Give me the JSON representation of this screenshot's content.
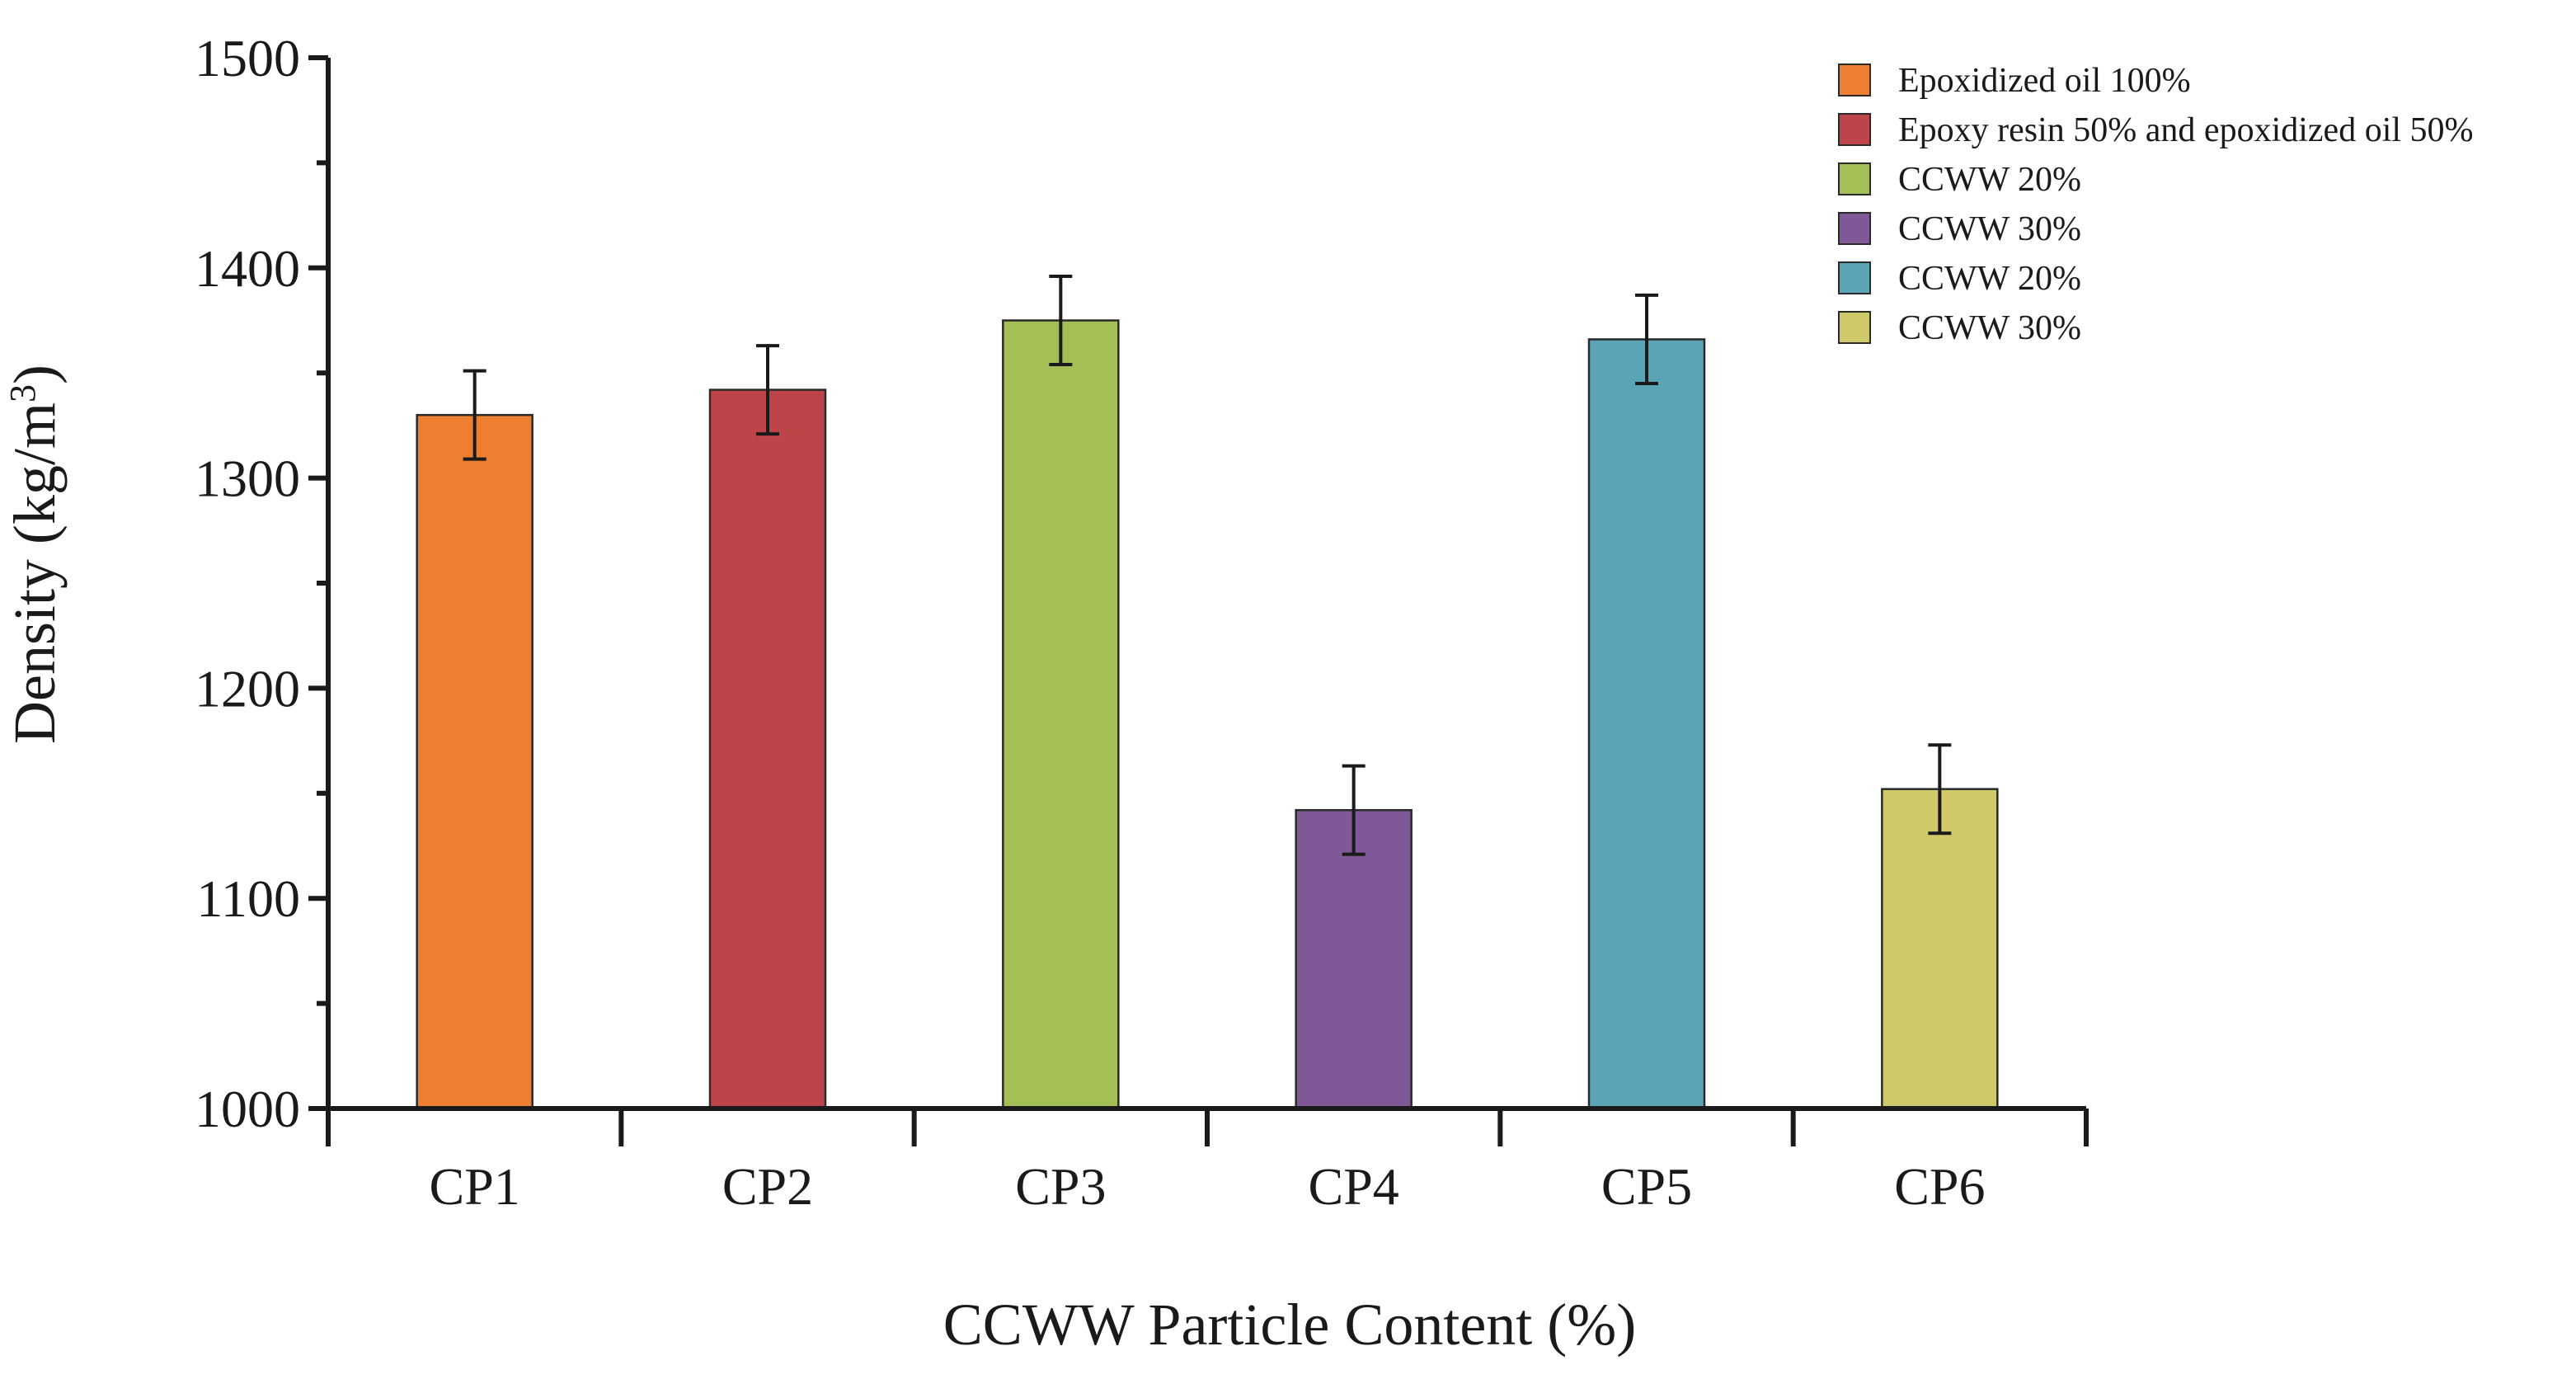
{
  "chart_data": {
    "type": "bar",
    "categories": [
      "CP1",
      "CP2",
      "CP3",
      "CP4",
      "CP5",
      "CP6"
    ],
    "series": [
      {
        "name": "Epoxidized oil 100%",
        "category": "CP1",
        "value": 1330,
        "error": 21,
        "color": "#ee7e30"
      },
      {
        "name": "Epoxy resin 50% and epoxidized oil 50%",
        "category": "CP2",
        "value": 1342,
        "error": 21,
        "color": "#bd4449"
      },
      {
        "name": "CCWW 20%",
        "category": "CP3",
        "value": 1375,
        "error": 21,
        "color": "#a4bf55"
      },
      {
        "name": "CCWW 30%",
        "category": "CP4",
        "value": 1142,
        "error": 21,
        "color": "#7f5897"
      },
      {
        "name": "CCWW 20%",
        "category": "CP5",
        "value": 1366,
        "error": 21,
        "color": "#5ba4b5"
      },
      {
        "name": "CCWW 30%",
        "category": "CP6",
        "value": 1152,
        "error": 21,
        "color": "#d0c96a"
      }
    ],
    "title": "",
    "xlabel": "CCWW Particle Content (%)",
    "ylabel_main": "Density (kg/m",
    "ylabel_sup": "3",
    "ylabel_close": ")",
    "ylim": [
      1000,
      1500
    ],
    "yticks": [
      1000,
      1100,
      1200,
      1300,
      1400,
      1500
    ],
    "grid": false,
    "legend_position": "top-right",
    "axis_color": "#1a1a1a"
  }
}
